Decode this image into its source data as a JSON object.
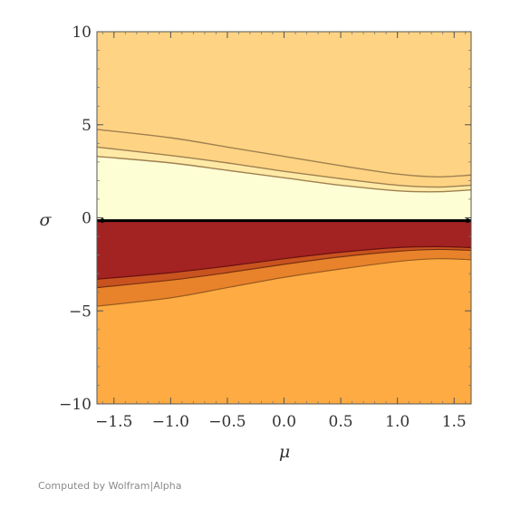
{
  "chart_data": {
    "type": "contour",
    "xlabel": "μ",
    "ylabel": "σ",
    "xlim": [
      -1.65,
      1.65
    ],
    "ylim": [
      -10,
      10
    ],
    "x_ticks": [
      {
        "value": -1.5,
        "label": "−1.5"
      },
      {
        "value": -1.0,
        "label": "−1.0"
      },
      {
        "value": -0.5,
        "label": "−0.5"
      },
      {
        "value": 0.0,
        "label": "0.0"
      },
      {
        "value": 0.5,
        "label": "0.5"
      },
      {
        "value": 1.0,
        "label": "1.0"
      },
      {
        "value": 1.5,
        "label": "1.5"
      }
    ],
    "y_ticks": [
      {
        "value": 10,
        "label": "10"
      },
      {
        "value": 5,
        "label": "5"
      },
      {
        "value": 0,
        "label": "0"
      },
      {
        "value": -5,
        "label": "−5"
      },
      {
        "value": -10,
        "label": "−10"
      }
    ],
    "x_samples": [
      -1.65,
      -1.0,
      -0.5,
      0.0,
      0.5,
      1.0,
      1.35,
      1.65
    ],
    "upper_contours": [
      {
        "name": "upper-contour-outer",
        "fill": "#fed383",
        "stroke": "#a08050",
        "sigma": [
          4.75,
          4.3,
          3.8,
          3.3,
          2.8,
          2.35,
          2.2,
          2.3
        ]
      },
      {
        "name": "upper-contour-middle",
        "fill": "#feeaa6",
        "stroke": "#a08050",
        "sigma": [
          3.8,
          3.35,
          2.95,
          2.5,
          2.1,
          1.75,
          1.65,
          1.75
        ]
      },
      {
        "name": "upper-contour-inner",
        "fill": "#fefed4",
        "stroke": "#a08050",
        "sigma": [
          3.3,
          2.95,
          2.55,
          2.15,
          1.75,
          1.45,
          1.4,
          1.5
        ]
      }
    ],
    "upper_background_fill": "#fed383",
    "zero_line": {
      "sigma": -0.15,
      "color": "#000000"
    },
    "lower_contours": [
      {
        "name": "lower-contour-outer",
        "fill": "#e8832b",
        "stroke": "#9a5a20",
        "sigma": [
          -4.75,
          -4.3,
          -3.75,
          -3.2,
          -2.75,
          -2.35,
          -2.2,
          -2.25
        ]
      },
      {
        "name": "lower-contour-middle",
        "fill": "#c8531f",
        "stroke": "#7a3010",
        "sigma": [
          -3.75,
          -3.35,
          -2.95,
          -2.5,
          -2.1,
          -1.8,
          -1.7,
          -1.75
        ]
      },
      {
        "name": "lower-contour-inner",
        "fill": "#a32222",
        "stroke": "#6a1010",
        "sigma": [
          -3.3,
          -2.95,
          -2.6,
          -2.2,
          -1.85,
          -1.6,
          -1.55,
          -1.6
        ]
      }
    ],
    "lower_background_fill": "#fdab42"
  },
  "credit": "Computed by Wolfram|Alpha"
}
